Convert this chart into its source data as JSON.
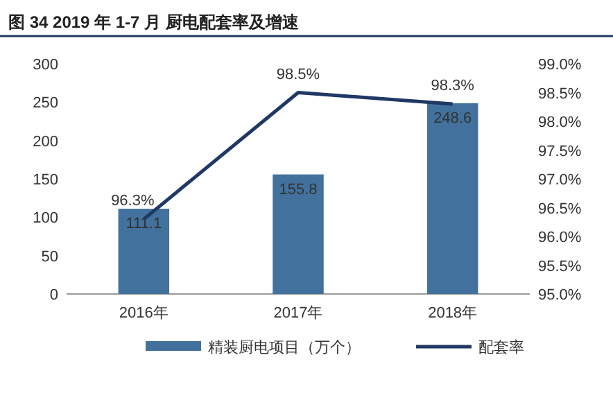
{
  "chart_data": {
    "type": "bar",
    "title": "图 34 2019 年 1-7 月  厨电配套率及增速",
    "categories": [
      "2016年",
      "2017年",
      "2018年"
    ],
    "series": [
      {
        "name": "精装厨电项目（万个）",
        "color": "#41719c",
        "values": [
          111.1,
          155.8,
          248.6
        ],
        "value_labels": [
          "111.1",
          "155.8",
          "248.6"
        ]
      },
      {
        "name": "配套率",
        "type": "line",
        "axis": "y2",
        "color": "#1f3864",
        "values": [
          96.3,
          98.5,
          98.3
        ],
        "value_labels": [
          "96.3%",
          "98.5%",
          "98.3%"
        ]
      }
    ],
    "ylim": [
      0,
      300
    ],
    "yticks": [
      0,
      50,
      100,
      150,
      200,
      250,
      300
    ],
    "y2lim": [
      95.0,
      99.0
    ],
    "y2ticks": [
      {
        "value": 95.0,
        "label": "95.0%"
      },
      {
        "value": 95.5,
        "label": "95.5%"
      },
      {
        "value": 96.0,
        "label": "96.0%"
      },
      {
        "value": 96.5,
        "label": "96.5%"
      },
      {
        "value": 97.0,
        "label": "97.0%"
      },
      {
        "value": 97.5,
        "label": "97.5%"
      },
      {
        "value": 98.0,
        "label": "98.0%"
      },
      {
        "value": 98.5,
        "label": "98.5%"
      },
      {
        "value": 99.0,
        "label": "99.0%"
      }
    ],
    "legend": "bottom",
    "grid": false
  }
}
